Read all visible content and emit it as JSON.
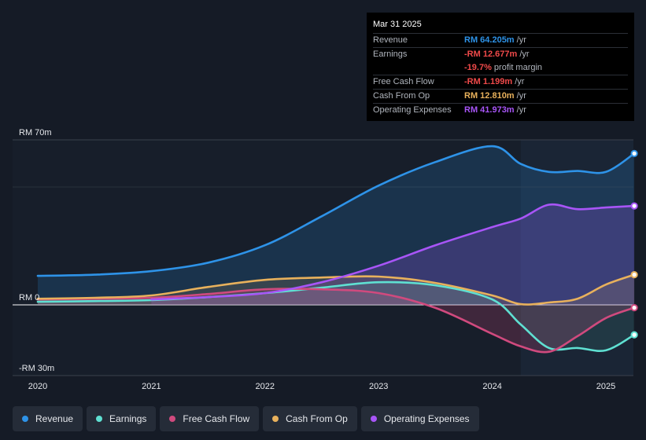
{
  "tooltip": {
    "date": "Mar 31 2025",
    "rows": [
      {
        "label": "Revenue",
        "value": "RM 64.205m",
        "unit": " /yr",
        "color": "#2e93e8"
      },
      {
        "label": "Earnings",
        "value": "-RM 12.677m",
        "unit": " /yr",
        "color": "#f04a4a"
      },
      {
        "label": "",
        "value": "-19.7%",
        "unit": " profit margin",
        "color": "#f04a4a"
      },
      {
        "label": "Free Cash Flow",
        "value": "-RM 1.199m",
        "unit": " /yr",
        "color": "#f04a4a"
      },
      {
        "label": "Cash From Op",
        "value": "RM 12.810m",
        "unit": " /yr",
        "color": "#e8b15c"
      },
      {
        "label": "Operating Expenses",
        "value": "RM 41.973m",
        "unit": " /yr",
        "color": "#a855f7"
      }
    ]
  },
  "chart_data": {
    "type": "line",
    "title": "",
    "x_unit": "year",
    "xlim": [
      2020.0,
      2025.4
    ],
    "ylim": [
      -30,
      70
    ],
    "y_tick_labels": [
      {
        "value": 70,
        "label": "RM 70m"
      },
      {
        "value": 0,
        "label": "RM 0"
      },
      {
        "value": -30,
        "label": "-RM 30m"
      }
    ],
    "x_tick_labels": [
      {
        "value": 2020,
        "label": "2020"
      },
      {
        "value": 2021,
        "label": "2021"
      },
      {
        "value": 2022,
        "label": "2022"
      },
      {
        "value": 2023,
        "label": "2023"
      },
      {
        "value": 2024,
        "label": "2024"
      },
      {
        "value": 2025,
        "label": "2025"
      }
    ],
    "forecast_start": 2024.25,
    "series": [
      {
        "name": "Revenue",
        "color": "#2e93e8",
        "fill": true,
        "points": [
          [
            2020.0,
            12.3
          ],
          [
            2020.5,
            12.8
          ],
          [
            2021.0,
            14.3
          ],
          [
            2021.5,
            17.9
          ],
          [
            2022.0,
            25.3
          ],
          [
            2022.5,
            37.6
          ],
          [
            2023.0,
            50.6
          ],
          [
            2023.5,
            60.6
          ],
          [
            2024.0,
            67.3
          ],
          [
            2024.25,
            59.8
          ],
          [
            2024.5,
            56.4
          ],
          [
            2024.75,
            56.8
          ],
          [
            2025.0,
            56.4
          ],
          [
            2025.25,
            64.2
          ]
        ]
      },
      {
        "name": "Earnings",
        "color": "#5fe0d2",
        "fill": false,
        "points": [
          [
            2020.0,
            1.3
          ],
          [
            2020.5,
            1.6
          ],
          [
            2021.0,
            2.0
          ],
          [
            2021.5,
            3.3
          ],
          [
            2022.0,
            5.0
          ],
          [
            2022.5,
            7.3
          ],
          [
            2023.0,
            9.6
          ],
          [
            2023.5,
            8.3
          ],
          [
            2024.0,
            2.3
          ],
          [
            2024.25,
            -8.3
          ],
          [
            2024.5,
            -18.3
          ],
          [
            2024.75,
            -18.3
          ],
          [
            2025.0,
            -19.3
          ],
          [
            2025.25,
            -12.7
          ]
        ]
      },
      {
        "name": "Free Cash Flow",
        "color": "#d04a7e",
        "fill": false,
        "points": [
          [
            2020.0,
            2.3
          ],
          [
            2020.5,
            2.6
          ],
          [
            2021.0,
            3.0
          ],
          [
            2021.5,
            4.6
          ],
          [
            2022.0,
            6.6
          ],
          [
            2022.5,
            6.6
          ],
          [
            2023.0,
            5.0
          ],
          [
            2023.5,
            -1.3
          ],
          [
            2024.0,
            -12.3
          ],
          [
            2024.25,
            -17.6
          ],
          [
            2024.5,
            -19.9
          ],
          [
            2024.75,
            -13.3
          ],
          [
            2025.0,
            -5.6
          ],
          [
            2025.25,
            -1.2
          ]
        ]
      },
      {
        "name": "Cash From Op",
        "color": "#e8b15c",
        "fill": false,
        "points": [
          [
            2020.0,
            2.6
          ],
          [
            2020.5,
            3.0
          ],
          [
            2021.0,
            4.0
          ],
          [
            2021.5,
            7.6
          ],
          [
            2022.0,
            10.6
          ],
          [
            2022.5,
            11.6
          ],
          [
            2023.0,
            12.0
          ],
          [
            2023.5,
            9.3
          ],
          [
            2024.0,
            4.0
          ],
          [
            2024.25,
            0.3
          ],
          [
            2024.5,
            1.0
          ],
          [
            2024.75,
            2.6
          ],
          [
            2025.0,
            8.6
          ],
          [
            2025.25,
            12.8
          ]
        ]
      },
      {
        "name": "Operating Expenses",
        "color": "#a855f7",
        "fill": true,
        "points": [
          [
            2021.0,
            2.3
          ],
          [
            2021.5,
            3.3
          ],
          [
            2022.0,
            5.0
          ],
          [
            2022.5,
            9.6
          ],
          [
            2023.0,
            16.6
          ],
          [
            2023.5,
            25.3
          ],
          [
            2024.0,
            33.0
          ],
          [
            2024.25,
            36.6
          ],
          [
            2024.5,
            42.5
          ],
          [
            2024.75,
            40.6
          ],
          [
            2025.0,
            41.3
          ],
          [
            2025.25,
            41.97
          ]
        ]
      }
    ]
  },
  "legend": {
    "items": [
      {
        "label": "Revenue",
        "color": "#2e93e8"
      },
      {
        "label": "Earnings",
        "color": "#5fe0d2"
      },
      {
        "label": "Free Cash Flow",
        "color": "#d04a7e"
      },
      {
        "label": "Cash From Op",
        "color": "#e8b15c"
      },
      {
        "label": "Operating Expenses",
        "color": "#a855f7"
      }
    ]
  }
}
